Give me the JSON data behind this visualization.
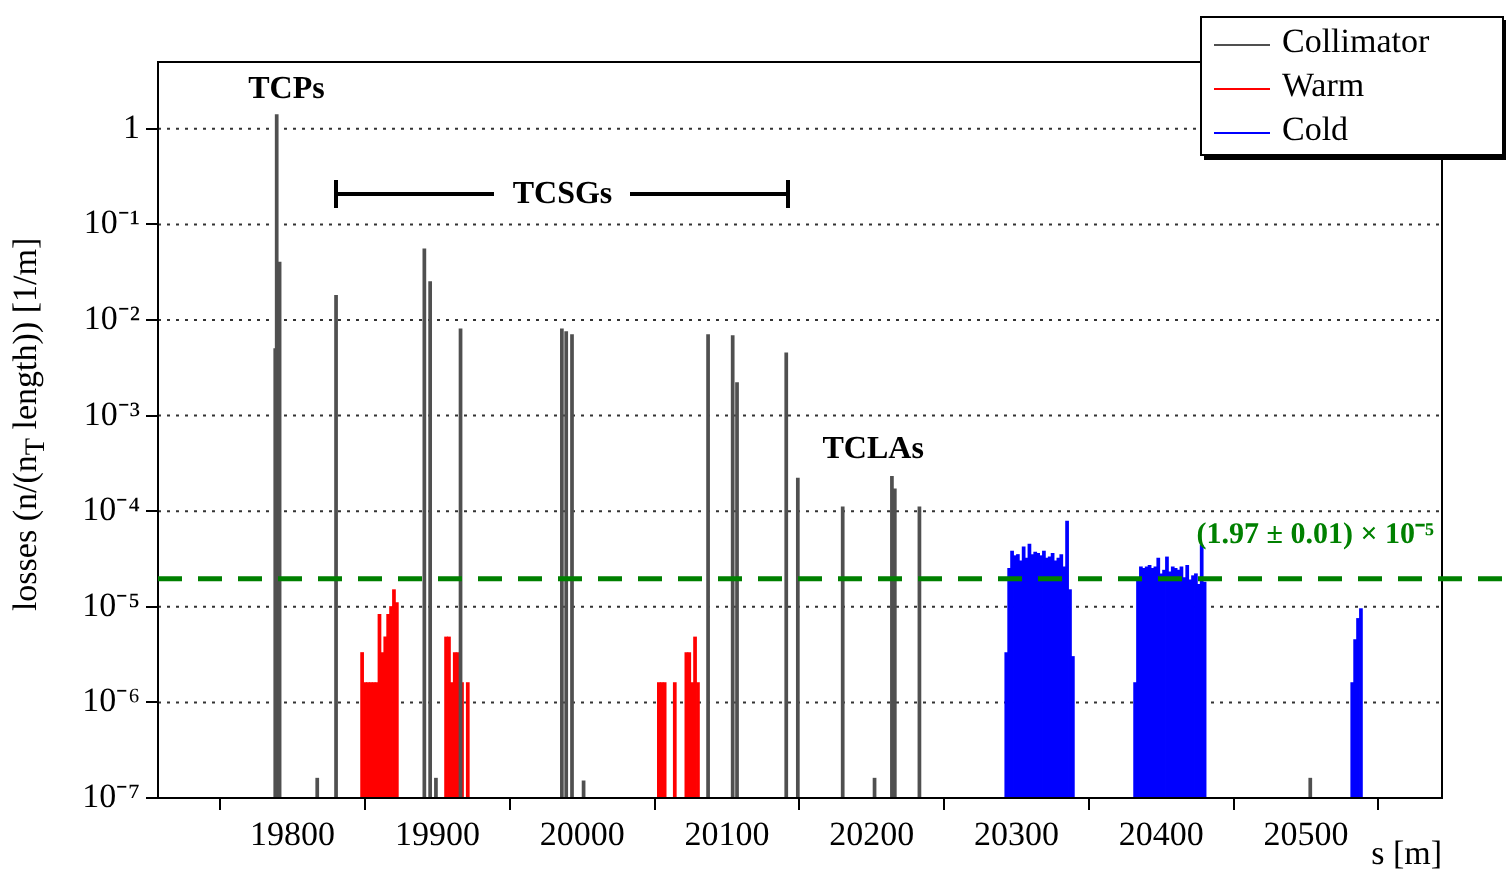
{
  "chart_data": {
    "type": "bar",
    "xlabel": "s [m]",
    "ylabel": "losses (n/(n$_{T}$ length)) [1/m]",
    "log": "y",
    "grid": "y",
    "legend": "top right",
    "xlim": [
      19707,
      20594
    ],
    "xticks": [
      19800,
      19900,
      20000,
      20100,
      20200,
      20300,
      20400,
      20500
    ],
    "ylim": [
      1e-07,
      5
    ],
    "yticks": [
      {
        "value": 1e-07,
        "label": "10⁻⁷"
      },
      {
        "value": 1e-06,
        "label": "10⁻⁶"
      },
      {
        "value": 1e-05,
        "label": "10⁻⁵"
      },
      {
        "value": 0.0001,
        "label": "10⁻⁴"
      },
      {
        "value": 0.001,
        "label": "10⁻³"
      },
      {
        "value": 0.01,
        "label": "10⁻²"
      },
      {
        "value": 0.1,
        "label": "10⁻¹"
      },
      1
    ],
    "series": [
      {
        "name": "Collimator",
        "color": "#505050",
        "x": [
          19788,
          19789,
          19791,
          19817,
          19830,
          19891,
          19895,
          19899,
          19916,
          19986,
          19989,
          19993,
          20001,
          20087,
          20104,
          20107,
          20141,
          20149,
          20180,
          20202,
          20214,
          20216,
          20233,
          20503
        ],
        "values": [
          0.005,
          1.4,
          0.04,
          1.6e-07,
          0.018,
          0.055,
          0.025,
          1.6e-07,
          0.008,
          0.008,
          0.0075,
          0.007,
          1.5e-07,
          0.007,
          0.0068,
          0.0022,
          0.0045,
          0.00022,
          0.00011,
          1.6e-07,
          0.00023,
          0.00017,
          0.00011,
          1.6e-07
        ]
      },
      {
        "name": "Warm",
        "color": "#ff0000",
        "x": [
          19848,
          19850,
          19852,
          19854,
          19856,
          19858,
          19860,
          19862,
          19864,
          19866,
          19868,
          19870,
          19872,
          19906,
          19908,
          19910,
          19912,
          19914,
          19917,
          19921,
          20053,
          20055,
          20057,
          20064,
          20072,
          20074,
          20076,
          20078,
          20080
        ],
        "values": [
          3.3e-06,
          1.6e-06,
          1.6e-06,
          1.6e-06,
          1.6e-06,
          1.6e-06,
          8.3e-06,
          3.3e-06,
          4.8e-06,
          8.3e-06,
          1e-05,
          1.5e-05,
          1.1e-05,
          4.8e-06,
          4.8e-06,
          1.6e-06,
          3.3e-06,
          3.3e-06,
          1.6e-06,
          1.6e-06,
          1.6e-06,
          1.6e-06,
          1.6e-06,
          1.6e-06,
          3.3e-06,
          3.3e-06,
          1.6e-06,
          4.8e-06,
          1.6e-06
        ]
      },
      {
        "name": "Cold",
        "color": "#0000ff",
        "x": [
          20293,
          20295,
          20297,
          20299,
          20301,
          20303,
          20305,
          20307,
          20309,
          20311,
          20313,
          20315,
          20317,
          20319,
          20321,
          20323,
          20325,
          20327,
          20329,
          20331,
          20333,
          20335,
          20337,
          20339,
          20382,
          20384,
          20386,
          20388,
          20390,
          20392,
          20394,
          20396,
          20398,
          20400,
          20402,
          20404,
          20406,
          20408,
          20410,
          20412,
          20414,
          20416,
          20418,
          20420,
          20422,
          20424,
          20426,
          20428,
          20430,
          20532,
          20534,
          20536,
          20538
        ],
        "values": [
          3.3e-06,
          2.5e-05,
          3.8e-05,
          3.4e-05,
          3.5e-05,
          3e-05,
          4.2e-05,
          3.2e-05,
          4.5e-05,
          3.5e-05,
          3.7e-05,
          3.6e-05,
          3.4e-05,
          3.8e-05,
          3.2e-05,
          3.3e-05,
          3.6e-05,
          3e-05,
          3.2e-05,
          3.5e-05,
          2.6e-05,
          7.8e-05,
          1.5e-05,
          3e-06,
          1.6e-06,
          2e-05,
          2.6e-05,
          2.5e-05,
          2.6e-05,
          2.7e-05,
          2.5e-05,
          2.6e-05,
          3.2e-05,
          2.2e-05,
          2.4e-05,
          3.3e-05,
          2.3e-05,
          2.6e-05,
          2.5e-05,
          2.4e-05,
          2.6e-05,
          2e-05,
          2.7e-05,
          1.9e-05,
          2.1e-05,
          2.2e-05,
          1.7e-05,
          4.4e-05,
          1.8e-05,
          1.6e-06,
          4.5e-06,
          7.5e-06,
          9.5e-06
        ]
      }
    ],
    "ref_lines": [
      {
        "axis": "y",
        "value": 1.97e-05,
        "label": "(1.97 ± 0.01) × 10⁻⁵",
        "color": "#008000",
        "line_style": "dashed"
      }
    ],
    "annotations": [
      "TCPs",
      "TCSGs",
      "TCLAs"
    ]
  }
}
